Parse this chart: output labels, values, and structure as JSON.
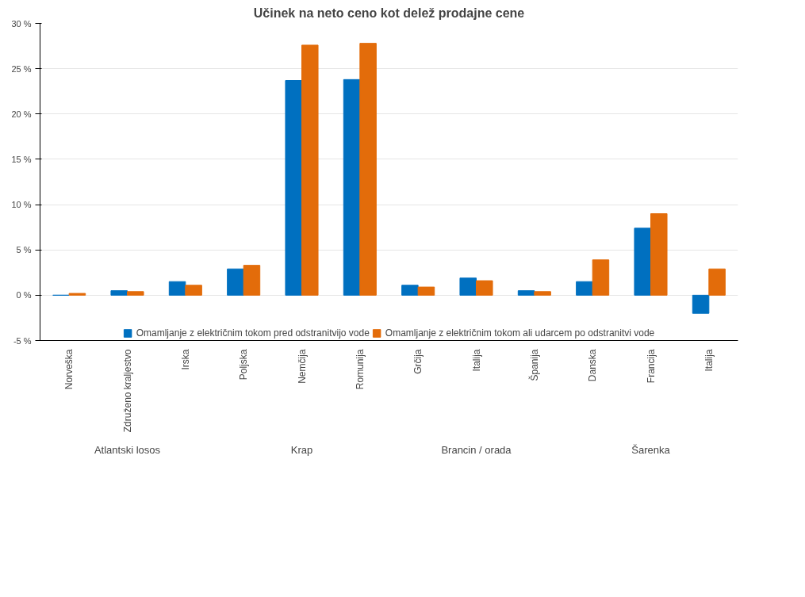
{
  "chart_data": {
    "type": "bar",
    "title": "Učinek na neto ceno kot delež prodajne cene",
    "categories": [
      "Norveška",
      "Združeno kraljestvo",
      "Irska",
      "Poljska",
      "Nemčija",
      "Romunija",
      "Grčija",
      "Italija",
      "Španija",
      "Danska",
      "Francija",
      "Italija"
    ],
    "series": [
      {
        "name": "Omamljanje z električnim tokom pred odstranitvijo vode",
        "color": "#0070c0",
        "values": [
          0,
          0.5,
          1.5,
          2.9,
          23.7,
          23.8,
          1.1,
          1.9,
          0.5,
          1.5,
          7.4,
          -2.0
        ]
      },
      {
        "name": "Omamljanje z električnim tokom ali udarcem po odstranitvi vode",
        "color": "#e36c0a",
        "values": [
          0.2,
          0.4,
          1.1,
          3.3,
          27.6,
          27.8,
          0.9,
          1.6,
          0.4,
          3.9,
          9.0,
          2.9
        ]
      }
    ],
    "annotations": [
      "Atlantski losos",
      "Krap",
      "Brancin / orada",
      "Šarenka"
    ],
    "ylim": [
      -5,
      30
    ],
    "yticks": [
      {
        "value": -5,
        "label": "-5 %"
      },
      {
        "value": 0,
        "label": "0 %"
      },
      {
        "value": 5,
        "label": "5 %"
      },
      {
        "value": 10,
        "label": "10 %"
      },
      {
        "value": 15,
        "label": "15 %"
      },
      {
        "value": 20,
        "label": "20 %"
      },
      {
        "value": 25,
        "label": "25 %"
      },
      {
        "value": 30,
        "label": "30 %"
      }
    ],
    "grid": "y",
    "legend": "bottom"
  }
}
